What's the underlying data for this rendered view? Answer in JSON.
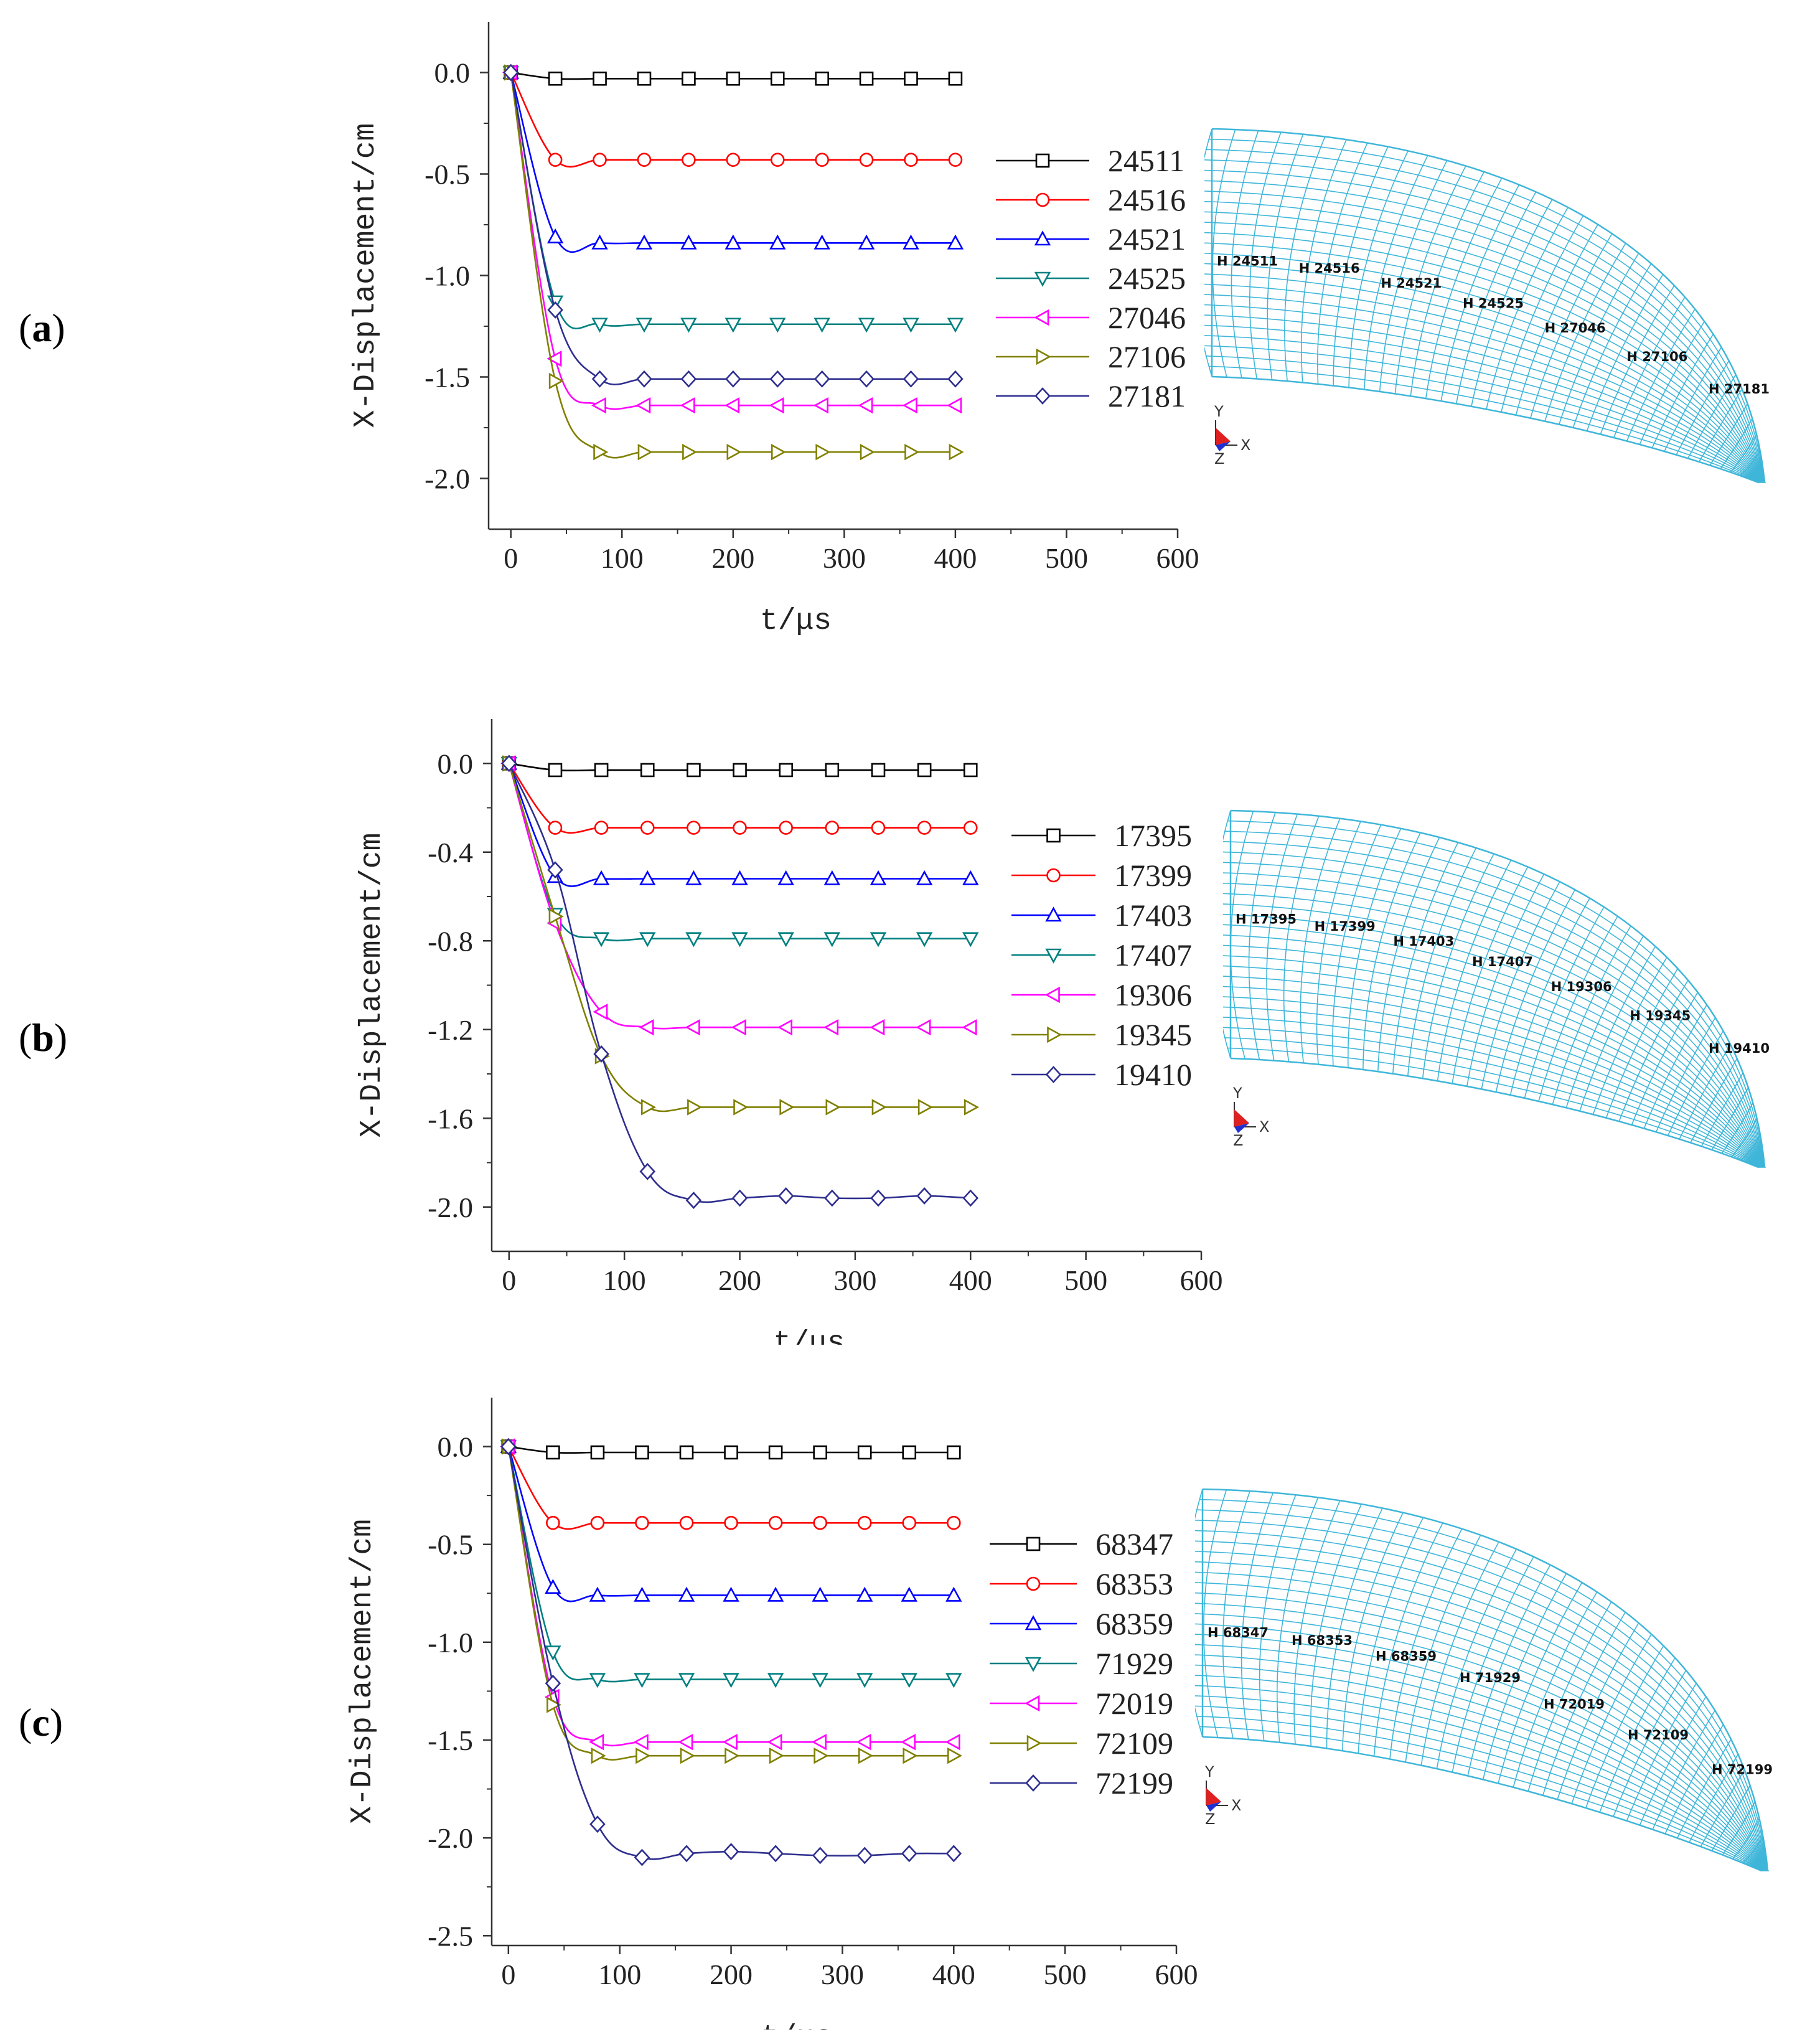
{
  "panels": [
    {
      "label": "a",
      "chart_data": {
        "type": "line",
        "xlabel": "t/μs",
        "ylabel": "X-Displacement/cm",
        "xlim": [
          -20,
          600
        ],
        "ylim": [
          -2.25,
          0.25
        ],
        "xticks": [
          0,
          100,
          200,
          300,
          400,
          500,
          600
        ],
        "xtick_labels": [
          "0",
          "100",
          "200",
          "300",
          "400",
          "500",
          "600"
        ],
        "yticks": [
          0.0,
          -0.5,
          -1.0,
          -1.5,
          -2.0
        ],
        "ytick_labels": [
          "0.0",
          "-0.5",
          "-1.0",
          "-1.5",
          "-2.0"
        ],
        "x": [
          0,
          40,
          80,
          120,
          160,
          200,
          240,
          280,
          320,
          360,
          400
        ],
        "series": [
          {
            "name": "24511",
            "marker": "square",
            "color": "#000000",
            "values": [
              0,
              -0.03,
              -0.03,
              -0.03,
              -0.03,
              -0.03,
              -0.03,
              -0.03,
              -0.03,
              -0.03,
              -0.03
            ]
          },
          {
            "name": "24516",
            "marker": "circle",
            "color": "#ff0000",
            "values": [
              0,
              -0.43,
              -0.43,
              -0.43,
              -0.43,
              -0.43,
              -0.43,
              -0.43,
              -0.43,
              -0.43,
              -0.43
            ]
          },
          {
            "name": "24521",
            "marker": "triangle-up",
            "color": "#0000ff",
            "values": [
              0,
              -0.81,
              -0.84,
              -0.84,
              -0.84,
              -0.84,
              -0.84,
              -0.84,
              -0.84,
              -0.84,
              -0.84
            ]
          },
          {
            "name": "24525",
            "marker": "triangle-down",
            "color": "#008080",
            "values": [
              0,
              -1.13,
              -1.24,
              -1.24,
              -1.24,
              -1.24,
              -1.24,
              -1.24,
              -1.24,
              -1.24,
              -1.24
            ]
          },
          {
            "name": "27046",
            "marker": "triangle-left",
            "color": "#ff00ff",
            "values": [
              0,
              -1.41,
              -1.64,
              -1.64,
              -1.64,
              -1.64,
              -1.64,
              -1.64,
              -1.64,
              -1.64,
              -1.64
            ]
          },
          {
            "name": "27106",
            "marker": "triangle-right",
            "color": "#808000",
            "values": [
              0,
              -1.52,
              -1.87,
              -1.87,
              -1.87,
              -1.87,
              -1.87,
              -1.87,
              -1.87,
              -1.87,
              -1.87
            ]
          },
          {
            "name": "27181",
            "marker": "diamond",
            "color": "#2e2e8f",
            "values": [
              0,
              -1.17,
              -1.51,
              -1.51,
              -1.51,
              -1.51,
              -1.51,
              -1.51,
              -1.51,
              -1.51,
              -1.51
            ]
          }
        ]
      },
      "mesh": {
        "nodes": [
          "H 24511",
          "H 24516",
          "H 24521",
          "H 24525",
          "H 27046",
          "H 27106",
          "H 27181"
        ],
        "axes": {
          "y": "Y",
          "x": "X",
          "z": "Z"
        }
      }
    },
    {
      "label": "b",
      "chart_data": {
        "type": "line",
        "xlabel": "t/μs",
        "ylabel": "X-Displacement/cm",
        "xlim": [
          -15,
          600
        ],
        "ylim": [
          -2.2,
          0.2
        ],
        "xticks": [
          0,
          100,
          200,
          300,
          400,
          500,
          600
        ],
        "xtick_labels": [
          "0",
          "100",
          "200",
          "300",
          "400",
          "500",
          "600"
        ],
        "yticks": [
          0.0,
          -0.4,
          -0.8,
          -1.2,
          -1.6,
          -2.0
        ],
        "ytick_labels": [
          "0.0",
          "-0.4",
          "-0.8",
          "-1.2",
          "-1.6",
          "-2.0"
        ],
        "x": [
          0,
          40,
          80,
          120,
          160,
          200,
          240,
          280,
          320,
          360,
          400
        ],
        "series": [
          {
            "name": "17395",
            "marker": "square",
            "color": "#000000",
            "values": [
              0,
              -0.03,
              -0.03,
              -0.03,
              -0.03,
              -0.03,
              -0.03,
              -0.03,
              -0.03,
              -0.03,
              -0.03
            ]
          },
          {
            "name": "17399",
            "marker": "circle",
            "color": "#ff0000",
            "values": [
              0,
              -0.29,
              -0.29,
              -0.29,
              -0.29,
              -0.29,
              -0.29,
              -0.29,
              -0.29,
              -0.29,
              -0.29
            ]
          },
          {
            "name": "17403",
            "marker": "triangle-up",
            "color": "#0000ff",
            "values": [
              0,
              -0.51,
              -0.52,
              -0.52,
              -0.52,
              -0.52,
              -0.52,
              -0.52,
              -0.52,
              -0.52,
              -0.52
            ]
          },
          {
            "name": "17407",
            "marker": "triangle-down",
            "color": "#008080",
            "values": [
              0,
              -0.68,
              -0.79,
              -0.79,
              -0.79,
              -0.79,
              -0.79,
              -0.79,
              -0.79,
              -0.79,
              -0.79
            ]
          },
          {
            "name": "19306",
            "marker": "triangle-left",
            "color": "#ff00ff",
            "values": [
              0,
              -0.72,
              -1.12,
              -1.19,
              -1.19,
              -1.19,
              -1.19,
              -1.19,
              -1.19,
              -1.19,
              -1.19
            ]
          },
          {
            "name": "19345",
            "marker": "triangle-right",
            "color": "#808000",
            "values": [
              0,
              -0.69,
              -1.32,
              -1.55,
              -1.55,
              -1.55,
              -1.55,
              -1.55,
              -1.55,
              -1.55,
              -1.55
            ]
          },
          {
            "name": "19410",
            "marker": "diamond",
            "color": "#2e2e8f",
            "values": [
              0,
              -0.48,
              -1.31,
              -1.84,
              -1.97,
              -1.96,
              -1.95,
              -1.96,
              -1.96,
              -1.95,
              -1.96
            ]
          }
        ]
      },
      "mesh": {
        "nodes": [
          "H 17395",
          "H 17399",
          "H 17403",
          "H 17407",
          "H 19306",
          "H 19345",
          "H 19410"
        ],
        "axes": {
          "y": "Y",
          "x": "X",
          "z": "Z"
        }
      }
    },
    {
      "label": "c",
      "chart_data": {
        "type": "line",
        "xlabel": "t/μs",
        "ylabel": "X-Displacement/cm",
        "xlim": [
          -15,
          600
        ],
        "ylim": [
          -2.55,
          0.25
        ],
        "xticks": [
          0,
          100,
          200,
          300,
          400,
          500,
          600
        ],
        "xtick_labels": [
          "0",
          "100",
          "200",
          "300",
          "400",
          "500",
          "600"
        ],
        "yticks": [
          0.0,
          -0.5,
          -1.0,
          -1.5,
          -2.0,
          -2.5
        ],
        "ytick_labels": [
          "0.0",
          "-0.5",
          "-1.0",
          "-1.5",
          "-2.0",
          "-2.5"
        ],
        "x": [
          0,
          40,
          80,
          120,
          160,
          200,
          240,
          280,
          320,
          360,
          400
        ],
        "series": [
          {
            "name": "68347",
            "marker": "square",
            "color": "#000000",
            "values": [
              0,
              -0.03,
              -0.03,
              -0.03,
              -0.03,
              -0.03,
              -0.03,
              -0.03,
              -0.03,
              -0.03,
              -0.03
            ]
          },
          {
            "name": "68353",
            "marker": "circle",
            "color": "#ff0000",
            "values": [
              0,
              -0.39,
              -0.39,
              -0.39,
              -0.39,
              -0.39,
              -0.39,
              -0.39,
              -0.39,
              -0.39,
              -0.39
            ]
          },
          {
            "name": "68359",
            "marker": "triangle-up",
            "color": "#0000ff",
            "values": [
              0,
              -0.72,
              -0.76,
              -0.76,
              -0.76,
              -0.76,
              -0.76,
              -0.76,
              -0.76,
              -0.76,
              -0.76
            ]
          },
          {
            "name": "71929",
            "marker": "triangle-down",
            "color": "#008080",
            "values": [
              0,
              -1.05,
              -1.19,
              -1.19,
              -1.19,
              -1.19,
              -1.19,
              -1.19,
              -1.19,
              -1.19,
              -1.19
            ]
          },
          {
            "name": "72019",
            "marker": "triangle-left",
            "color": "#ff00ff",
            "values": [
              0,
              -1.28,
              -1.51,
              -1.51,
              -1.51,
              -1.51,
              -1.51,
              -1.51,
              -1.51,
              -1.51,
              -1.51
            ]
          },
          {
            "name": "72109",
            "marker": "triangle-right",
            "color": "#808000",
            "values": [
              0,
              -1.32,
              -1.58,
              -1.58,
              -1.58,
              -1.58,
              -1.58,
              -1.58,
              -1.58,
              -1.58,
              -1.58
            ]
          },
          {
            "name": "72199",
            "marker": "diamond",
            "color": "#2e2e8f",
            "values": [
              0,
              -1.21,
              -1.93,
              -2.1,
              -2.08,
              -2.07,
              -2.08,
              -2.09,
              -2.09,
              -2.08,
              -2.08
            ]
          }
        ]
      },
      "mesh": {
        "nodes": [
          "H 68347",
          "H 68353",
          "H 68359",
          "H 71929",
          "H 72019",
          "H 72109",
          "H 72199"
        ],
        "axes": {
          "y": "Y",
          "x": "X",
          "z": "Z"
        }
      }
    }
  ],
  "mesh_color": "#3fb6d9"
}
